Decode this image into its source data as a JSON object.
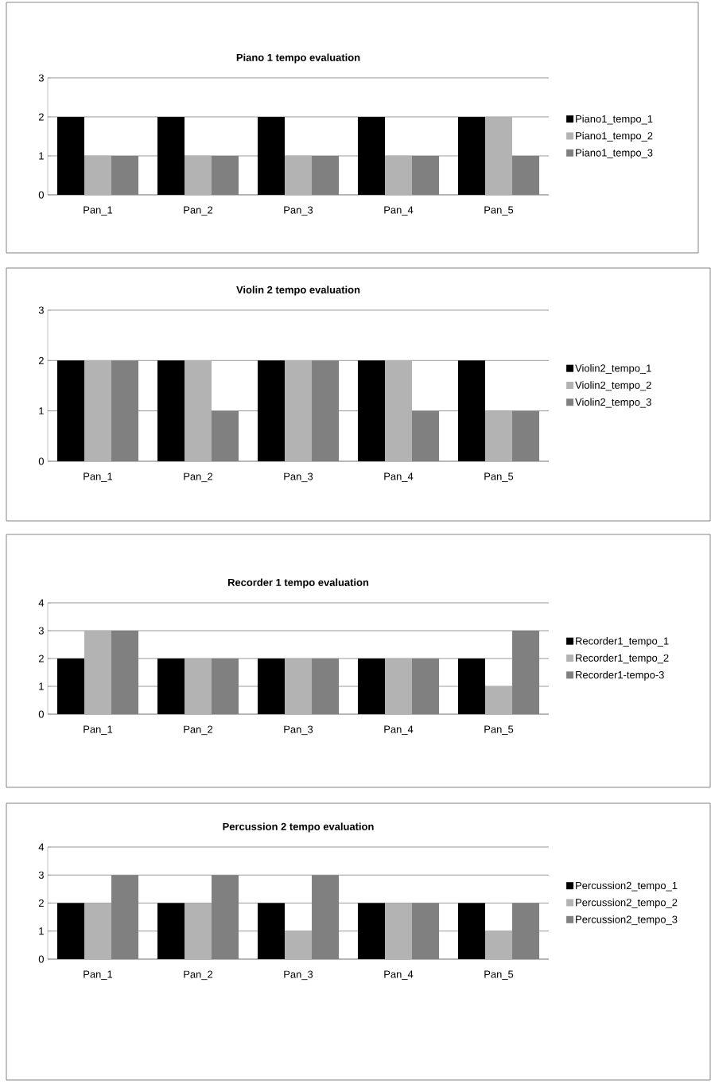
{
  "chart_data": [
    {
      "type": "bar",
      "title": "Piano 1 tempo evaluation",
      "categories": [
        "Pan_1",
        "Pan_2",
        "Pan_3",
        "Pan_4",
        "Pan_5"
      ],
      "ylim": [
        0,
        3
      ],
      "yticks": [
        0,
        1,
        2,
        3
      ],
      "grid": "y",
      "legend": "right",
      "series": [
        {
          "name": "Piano1_tempo_1",
          "color": "#000000",
          "values": [
            2,
            2,
            2,
            2,
            2
          ]
        },
        {
          "name": "Piano1_tempo_2",
          "color": "#b3b3b3",
          "values": [
            1,
            1,
            1,
            1,
            2
          ]
        },
        {
          "name": "Piano1_tempo_3",
          "color": "#808080",
          "values": [
            1,
            1,
            1,
            1,
            1
          ]
        }
      ]
    },
    {
      "type": "bar",
      "title": "Violin 2 tempo evaluation",
      "categories": [
        "Pan_1",
        "Pan_2",
        "Pan_3",
        "Pan_4",
        "Pan_5"
      ],
      "ylim": [
        0,
        3
      ],
      "yticks": [
        0,
        1,
        2,
        3
      ],
      "grid": "y",
      "legend": "right",
      "series": [
        {
          "name": "Violin2_tempo_1",
          "color": "#000000",
          "values": [
            2,
            2,
            2,
            2,
            2
          ]
        },
        {
          "name": "Violin2_tempo_2",
          "color": "#b3b3b3",
          "values": [
            2,
            2,
            2,
            2,
            1
          ]
        },
        {
          "name": "Violin2_tempo_3",
          "color": "#808080",
          "values": [
            2,
            1,
            2,
            1,
            1
          ]
        }
      ]
    },
    {
      "type": "bar",
      "title": "Recorder 1 tempo evaluation",
      "categories": [
        "Pan_1",
        "Pan_2",
        "Pan_3",
        "Pan_4",
        "Pan_5"
      ],
      "ylim": [
        0,
        4
      ],
      "yticks": [
        0,
        1,
        2,
        3,
        4
      ],
      "grid": "y",
      "legend": "right",
      "series": [
        {
          "name": "Recorder1_tempo_1",
          "color": "#000000",
          "values": [
            2,
            2,
            2,
            2,
            2
          ]
        },
        {
          "name": "Recorder1_tempo_2",
          "color": "#b3b3b3",
          "values": [
            3,
            2,
            2,
            2,
            1
          ]
        },
        {
          "name": "Recorder1-tempo-3",
          "color": "#808080",
          "values": [
            3,
            2,
            2,
            2,
            3
          ]
        }
      ]
    },
    {
      "type": "bar",
      "title": "Percussion 2 tempo evaluation",
      "categories": [
        "Pan_1",
        "Pan_2",
        "Pan_3",
        "Pan_4",
        "Pan_5"
      ],
      "ylim": [
        0,
        4
      ],
      "yticks": [
        0,
        1,
        2,
        3,
        4
      ],
      "grid": "y",
      "legend": "right",
      "series": [
        {
          "name": "Percussion2_tempo_1",
          "color": "#000000",
          "values": [
            2,
            2,
            2,
            2,
            2
          ]
        },
        {
          "name": "Percussion2_tempo_2",
          "color": "#b3b3b3",
          "values": [
            2,
            2,
            1,
            2,
            1
          ]
        },
        {
          "name": "Percussion2_tempo_3",
          "color": "#808080",
          "values": [
            3,
            3,
            3,
            2,
            2
          ]
        }
      ]
    }
  ]
}
